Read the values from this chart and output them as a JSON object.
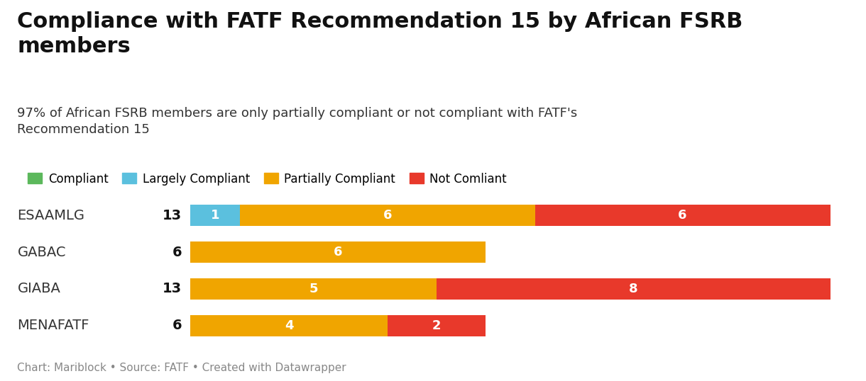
{
  "title": "Compliance with FATF Recommendation 15 by African FSRB\nmembers",
  "subtitle": "97% of African FSRB members are only partially compliant or not compliant with FATF's\nRecommendation 15",
  "footer": "Chart: Mariblock • Source: FATF • Created with Datawrapper",
  "categories": [
    "ESAAMLG",
    "GABAC",
    "GIABA",
    "MENAFATF"
  ],
  "totals": [
    13,
    6,
    13,
    6
  ],
  "data": {
    "Compliant": [
      0,
      0,
      0,
      0
    ],
    "Largely Compliant": [
      1,
      0,
      0,
      0
    ],
    "Partially Compliant": [
      6,
      6,
      5,
      4
    ],
    "Not Comliant": [
      6,
      0,
      8,
      2
    ]
  },
  "colors": {
    "Compliant": "#5cb85c",
    "Largely Compliant": "#5bc0de",
    "Partially Compliant": "#f0a500",
    "Not Comliant": "#e8392b"
  },
  "legend_order": [
    "Compliant",
    "Largely Compliant",
    "Partially Compliant",
    "Not Comliant"
  ],
  "background_color": "#ffffff",
  "title_fontsize": 22,
  "subtitle_fontsize": 13,
  "label_fontsize": 12,
  "footer_fontsize": 11,
  "bar_label_fontsize": 13,
  "total_fontsize": 14,
  "category_fontsize": 14
}
